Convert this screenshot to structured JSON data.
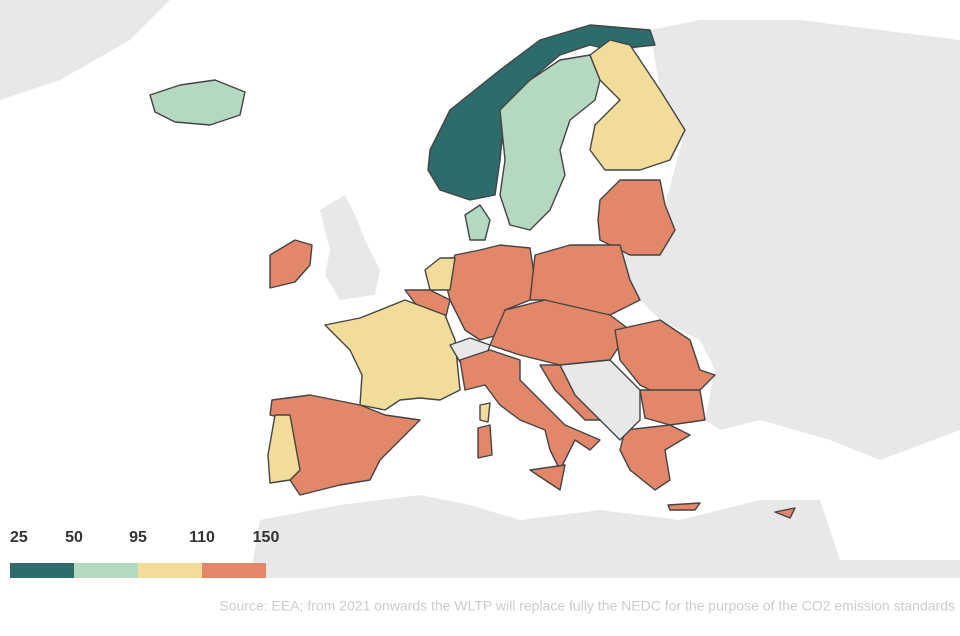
{
  "legend": {
    "breaks": [
      25,
      50,
      95,
      110,
      150
    ],
    "colors": [
      "#2e6b6b",
      "#b5d8c0",
      "#f2dc9a",
      "#e2876a"
    ]
  },
  "source": "Source:  EEA; from 2021 onwards the WLTP will replace fully the NEDC for the purpose of the CO2 emission standards"
}
